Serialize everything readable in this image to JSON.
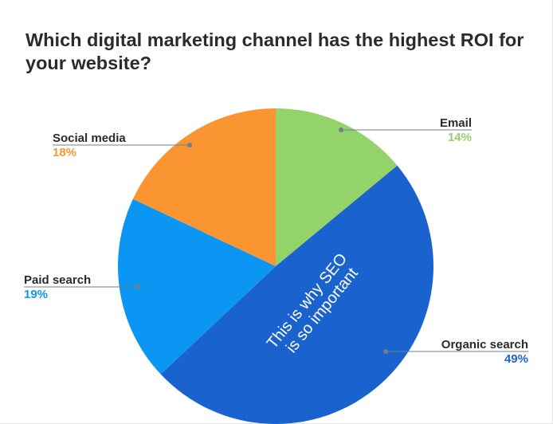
{
  "chart_data": {
    "type": "pie",
    "title": "Which digital marketing channel has the highest ROI for your website?",
    "slices": [
      {
        "label": "Email",
        "value": 14,
        "value_label": "14%",
        "color": "#94d26a"
      },
      {
        "label": "Organic search",
        "value": 49,
        "value_label": "49%",
        "color": "#1a63cf"
      },
      {
        "label": "Paid search",
        "value": 19,
        "value_label": "19%",
        "color": "#0a96f2"
      },
      {
        "label": "Social media",
        "value": 18,
        "value_label": "18%",
        "color": "#fb9532"
      }
    ],
    "annotation": [
      "This is why SEO",
      "is so important"
    ]
  }
}
